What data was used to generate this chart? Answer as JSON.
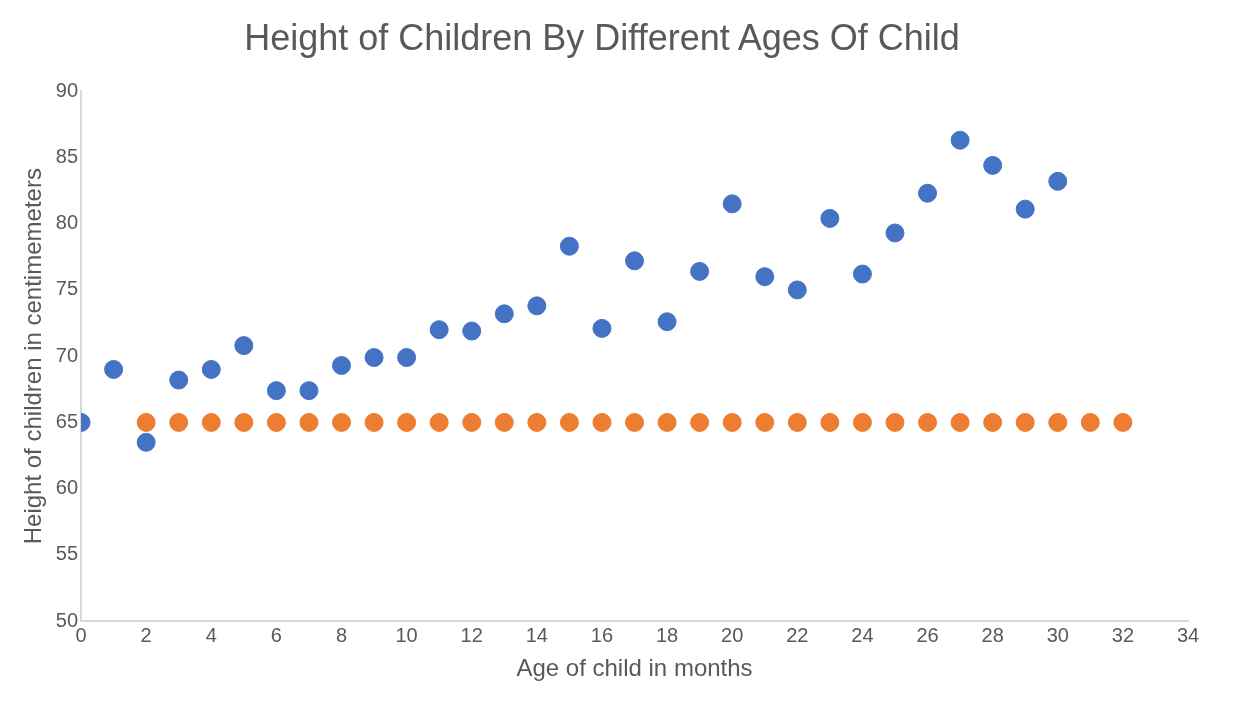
{
  "chart_data": {
    "type": "scatter",
    "title": "Height of Children By Different Ages Of Child",
    "xlabel": "Age of child in months",
    "ylabel": "Height of children in centimemeters",
    "xlim": [
      0,
      34
    ],
    "xticks": [
      0,
      2,
      4,
      6,
      8,
      10,
      12,
      14,
      16,
      18,
      20,
      22,
      24,
      26,
      28,
      30,
      32,
      34
    ],
    "ylim": [
      50,
      90
    ],
    "yticks": [
      50,
      55,
      60,
      65,
      70,
      75,
      80,
      85,
      90
    ],
    "grid": false,
    "marker": "circle",
    "series": [
      {
        "color": "#4472c4",
        "x": [
          0,
          1,
          2,
          3,
          4,
          5,
          6,
          7,
          8,
          9,
          10,
          11,
          12,
          13,
          14,
          15,
          16,
          17,
          18,
          19,
          20,
          21,
          22,
          23,
          24,
          25,
          26,
          27,
          28,
          29,
          30
        ],
        "values": [
          65,
          69,
          63.5,
          68.2,
          69,
          70.8,
          67.4,
          67.4,
          69.3,
          69.9,
          69.9,
          72,
          71.9,
          73.2,
          73.8,
          78.3,
          72.1,
          77.2,
          72.6,
          76.4,
          81.5,
          76,
          75,
          80.4,
          76.2,
          79.3,
          82.3,
          86.3,
          84.4,
          81.1,
          83.2
        ]
      },
      {
        "color": "#ed7d31",
        "x": [
          2,
          3,
          4,
          5,
          6,
          7,
          8,
          9,
          10,
          11,
          12,
          13,
          14,
          15,
          16,
          17,
          18,
          19,
          20,
          21,
          22,
          23,
          24,
          25,
          26,
          27,
          28,
          29,
          30,
          31,
          32
        ],
        "values": [
          65,
          65,
          65,
          65,
          65,
          65,
          65,
          65,
          65,
          65,
          65,
          65,
          65,
          65,
          65,
          65,
          65,
          65,
          65,
          65,
          65,
          65,
          65,
          65,
          65,
          65,
          65,
          65,
          65,
          65,
          65
        ]
      }
    ]
  }
}
